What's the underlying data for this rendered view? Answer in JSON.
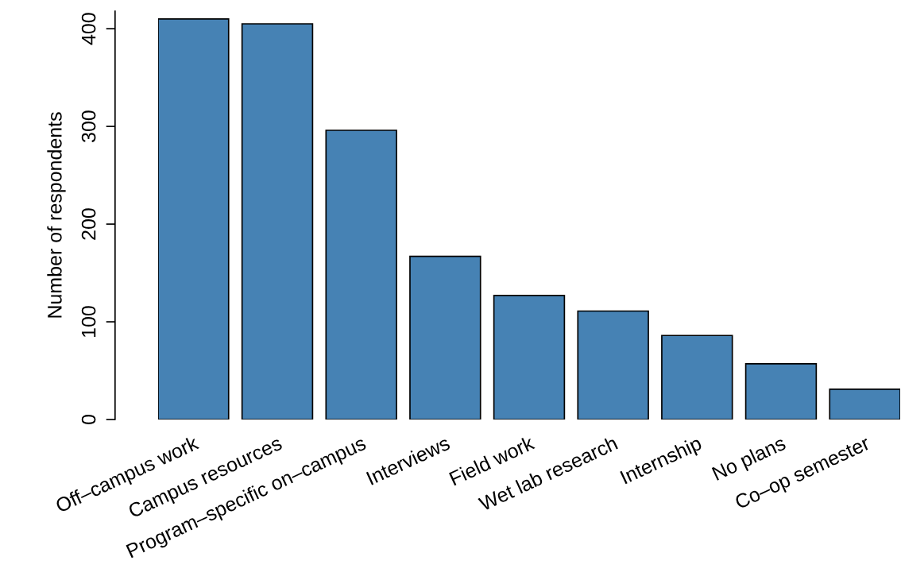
{
  "chart_data": {
    "type": "bar",
    "ylabel": "Number of respondents",
    "categories": [
      "Off–campus work",
      "Campus resources",
      "Program–specific on–campus",
      "Interviews",
      "Field work",
      "Wet lab research",
      "Internship",
      "No plans",
      "Co–op semester"
    ],
    "values": [
      410,
      405,
      296,
      167,
      127,
      111,
      86,
      57,
      31
    ],
    "color": "#4682b4",
    "ylim": [
      0,
      418
    ],
    "yticks": [
      0,
      100,
      200,
      300,
      400
    ],
    "grid": false
  }
}
